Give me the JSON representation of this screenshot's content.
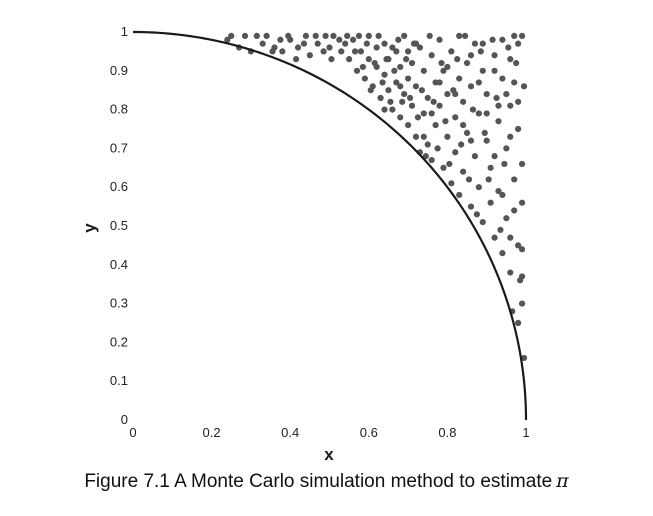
{
  "chart_data": {
    "type": "scatter",
    "caption": "Figure 7.1 A Monte Carlo simulation method to estimate",
    "caption_symbol": "π",
    "xlabel": "x",
    "ylabel": "y",
    "xlim": [
      0,
      1
    ],
    "ylim": [
      0,
      1
    ],
    "x_ticks": [
      0,
      0.2,
      0.4,
      0.6,
      0.8,
      1
    ],
    "x_tick_labels": [
      "0",
      "0.2",
      "0.4",
      "0.6",
      "0.8",
      "1"
    ],
    "y_ticks": [
      0,
      0.1,
      0.2,
      0.3,
      0.4,
      0.5,
      0.6,
      0.7,
      0.8,
      0.9,
      1
    ],
    "y_tick_labels": [
      "0",
      "0.1",
      "0.2",
      "0.3",
      "0.4",
      "0.5",
      "0.6",
      "0.7",
      "0.8",
      "0.9",
      "1"
    ],
    "grid": false,
    "curve": "quarter circle x^2 + y^2 = 1",
    "point_color": "#555555",
    "curve_color": "#1a1a1a",
    "points": [
      [
        0.24,
        0.98
      ],
      [
        0.25,
        0.99
      ],
      [
        0.27,
        0.96
      ],
      [
        0.3,
        0.95
      ],
      [
        0.33,
        0.97
      ],
      [
        0.34,
        0.99
      ],
      [
        0.36,
        0.96
      ],
      [
        0.38,
        0.95
      ],
      [
        0.4,
        0.98
      ],
      [
        0.42,
        0.96
      ],
      [
        0.44,
        0.99
      ],
      [
        0.45,
        0.94
      ],
      [
        0.47,
        0.97
      ],
      [
        0.49,
        0.99
      ],
      [
        0.5,
        0.96
      ],
      [
        0.51,
        0.99
      ],
      [
        0.53,
        0.95
      ],
      [
        0.54,
        0.97
      ],
      [
        0.55,
        0.93
      ],
      [
        0.56,
        0.98
      ],
      [
        0.57,
        0.9
      ],
      [
        0.58,
        0.95
      ],
      [
        0.59,
        0.88
      ],
      [
        0.6,
        0.93
      ],
      [
        0.6,
        0.99
      ],
      [
        0.61,
        0.86
      ],
      [
        0.62,
        0.91
      ],
      [
        0.62,
        0.96
      ],
      [
        0.63,
        0.83
      ],
      [
        0.64,
        0.89
      ],
      [
        0.64,
        0.97
      ],
      [
        0.65,
        0.85
      ],
      [
        0.65,
        0.93
      ],
      [
        0.66,
        0.8
      ],
      [
        0.67,
        0.87
      ],
      [
        0.67,
        0.95
      ],
      [
        0.68,
        0.91
      ],
      [
        0.68,
        0.78
      ],
      [
        0.69,
        0.84
      ],
      [
        0.69,
        0.99
      ],
      [
        0.7,
        0.88
      ],
      [
        0.7,
        0.76
      ],
      [
        0.71,
        0.92
      ],
      [
        0.71,
        0.81
      ],
      [
        0.72,
        0.86
      ],
      [
        0.72,
        0.73
      ],
      [
        0.73,
        0.96
      ],
      [
        0.73,
        0.69
      ],
      [
        0.74,
        0.79
      ],
      [
        0.74,
        0.9
      ],
      [
        0.75,
        0.83
      ],
      [
        0.75,
        0.71
      ],
      [
        0.76,
        0.94
      ],
      [
        0.76,
        0.67
      ],
      [
        0.77,
        0.87
      ],
      [
        0.77,
        0.76
      ],
      [
        0.78,
        0.81
      ],
      [
        0.78,
        0.98
      ],
      [
        0.79,
        0.65
      ],
      [
        0.79,
        0.9
      ],
      [
        0.8,
        0.73
      ],
      [
        0.8,
        0.84
      ],
      [
        0.81,
        0.61
      ],
      [
        0.81,
        0.95
      ],
      [
        0.82,
        0.78
      ],
      [
        0.82,
        0.69
      ],
      [
        0.83,
        0.88
      ],
      [
        0.83,
        0.58
      ],
      [
        0.84,
        0.82
      ],
      [
        0.84,
        0.64
      ],
      [
        0.85,
        0.92
      ],
      [
        0.85,
        0.74
      ],
      [
        0.86,
        0.55
      ],
      [
        0.86,
        0.86
      ],
      [
        0.87,
        0.68
      ],
      [
        0.87,
        0.97
      ],
      [
        0.88,
        0.79
      ],
      [
        0.88,
        0.6
      ],
      [
        0.89,
        0.51
      ],
      [
        0.89,
        0.9
      ],
      [
        0.9,
        0.72
      ],
      [
        0.9,
        0.84
      ],
      [
        0.91,
        0.56
      ],
      [
        0.91,
        0.65
      ],
      [
        0.92,
        0.47
      ],
      [
        0.92,
        0.94
      ],
      [
        0.93,
        0.77
      ],
      [
        0.93,
        0.59
      ],
      [
        0.94,
        0.88
      ],
      [
        0.94,
        0.43
      ],
      [
        0.95,
        0.7
      ],
      [
        0.95,
        0.52
      ],
      [
        0.96,
        0.81
      ],
      [
        0.96,
        0.38
      ],
      [
        0.97,
        0.62
      ],
      [
        0.97,
        0.99
      ],
      [
        0.98,
        0.45
      ],
      [
        0.98,
        0.75
      ],
      [
        0.99,
        0.3
      ],
      [
        0.99,
        0.56
      ],
      [
        0.995,
        0.86
      ],
      [
        0.995,
        0.16
      ],
      [
        0.985,
        0.36
      ],
      [
        0.975,
        0.92
      ],
      [
        0.965,
        0.28
      ],
      [
        0.955,
        0.96
      ],
      [
        0.945,
        0.66
      ],
      [
        0.935,
        0.49
      ],
      [
        0.925,
        0.83
      ],
      [
        0.915,
        0.98
      ],
      [
        0.905,
        0.62
      ],
      [
        0.895,
        0.74
      ],
      [
        0.885,
        0.95
      ],
      [
        0.875,
        0.53
      ],
      [
        0.865,
        0.8
      ],
      [
        0.855,
        0.62
      ],
      [
        0.845,
        0.99
      ],
      [
        0.835,
        0.71
      ],
      [
        0.825,
        0.93
      ],
      [
        0.815,
        0.85
      ],
      [
        0.805,
        0.66
      ],
      [
        0.795,
        0.77
      ],
      [
        0.785,
        0.92
      ],
      [
        0.775,
        0.7
      ],
      [
        0.765,
        0.82
      ],
      [
        0.755,
        0.99
      ],
      [
        0.745,
        0.68
      ],
      [
        0.735,
        0.85
      ],
      [
        0.725,
        0.78
      ],
      [
        0.715,
        0.97
      ],
      [
        0.705,
        0.83
      ],
      [
        0.695,
        0.93
      ],
      [
        0.685,
        0.82
      ],
      [
        0.675,
        0.98
      ],
      [
        0.665,
        0.9
      ],
      [
        0.655,
        0.82
      ],
      [
        0.645,
        0.93
      ],
      [
        0.635,
        0.87
      ],
      [
        0.625,
        0.99
      ],
      [
        0.615,
        0.92
      ],
      [
        0.605,
        0.85
      ],
      [
        0.595,
        0.97
      ],
      [
        0.585,
        0.91
      ],
      [
        0.575,
        0.99
      ],
      [
        0.565,
        0.95
      ],
      [
        0.545,
        0.99
      ],
      [
        0.525,
        0.98
      ],
      [
        0.505,
        0.93
      ],
      [
        0.485,
        0.95
      ],
      [
        0.465,
        0.99
      ],
      [
        0.435,
        0.97
      ],
      [
        0.415,
        0.93
      ],
      [
        0.395,
        0.99
      ],
      [
        0.375,
        0.98
      ],
      [
        0.355,
        0.95
      ],
      [
        0.315,
        0.99
      ],
      [
        0.285,
        0.99
      ],
      [
        0.83,
        0.99
      ],
      [
        0.86,
        0.94
      ],
      [
        0.89,
        0.97
      ],
      [
        0.92,
        0.9
      ],
      [
        0.94,
        0.98
      ],
      [
        0.96,
        0.93
      ],
      [
        0.98,
        0.97
      ],
      [
        0.99,
        0.99
      ],
      [
        0.97,
        0.87
      ],
      [
        0.95,
        0.84
      ],
      [
        0.93,
        0.81
      ],
      [
        0.98,
        0.82
      ],
      [
        0.96,
        0.73
      ],
      [
        0.99,
        0.66
      ],
      [
        0.97,
        0.54
      ],
      [
        0.99,
        0.44
      ],
      [
        0.96,
        0.47
      ],
      [
        0.98,
        0.25
      ],
      [
        0.99,
        0.37
      ],
      [
        0.94,
        0.58
      ],
      [
        0.92,
        0.68
      ],
      [
        0.9,
        0.79
      ],
      [
        0.88,
        0.87
      ],
      [
        0.86,
        0.72
      ],
      [
        0.84,
        0.76
      ],
      [
        0.82,
        0.84
      ],
      [
        0.8,
        0.91
      ],
      [
        0.78,
        0.87
      ],
      [
        0.76,
        0.79
      ],
      [
        0.74,
        0.73
      ],
      [
        0.72,
        0.97
      ],
      [
        0.7,
        0.95
      ],
      [
        0.68,
        0.86
      ],
      [
        0.66,
        0.96
      ],
      [
        0.64,
        0.8
      ]
    ]
  }
}
